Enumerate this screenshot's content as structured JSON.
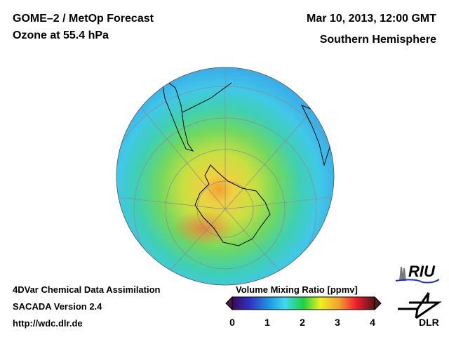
{
  "header": {
    "title": "GOME–2 / MetOp Forecast",
    "subtitle": "Ozone at 55.4 hPa",
    "date": "Mar 10, 2013, 12:00 GMT",
    "region": "Southern Hemisphere"
  },
  "footer": {
    "line1": "4DVar Chemical Data Assimilation",
    "line2": "SACADA Version 2.4",
    "line3": "http://wdc.dlr.de"
  },
  "colorbar": {
    "title": "Volume Mixing Ratio [ppmv]",
    "ticks": [
      "0",
      "1",
      "2",
      "3",
      "4"
    ],
    "range": [
      0,
      4
    ]
  },
  "logos": {
    "riu": "RIU",
    "dlr": "DLR"
  }
}
